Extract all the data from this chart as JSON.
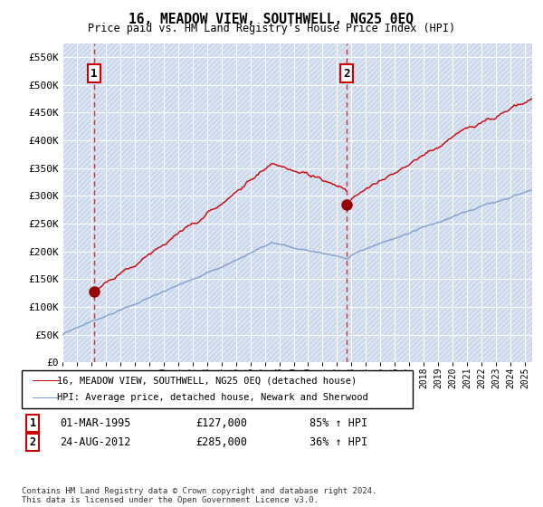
{
  "title": "16, MEADOW VIEW, SOUTHWELL, NG25 0EQ",
  "subtitle": "Price paid vs. HM Land Registry's House Price Index (HPI)",
  "ylabel_ticks": [
    "£0",
    "£50K",
    "£100K",
    "£150K",
    "£200K",
    "£250K",
    "£300K",
    "£350K",
    "£400K",
    "£450K",
    "£500K",
    "£550K"
  ],
  "ytick_values": [
    0,
    50000,
    100000,
    150000,
    200000,
    250000,
    300000,
    350000,
    400000,
    450000,
    500000,
    550000
  ],
  "ylim": [
    0,
    575000
  ],
  "xlim_start": 1993.0,
  "xlim_end": 2025.5,
  "sale1_date": 1995.17,
  "sale1_price": 127000,
  "sale1_label": "1",
  "sale2_date": 2012.65,
  "sale2_price": 285000,
  "sale2_label": "2",
  "legend_line1": "16, MEADOW VIEW, SOUTHWELL, NG25 0EQ (detached house)",
  "legend_line2": "HPI: Average price, detached house, Newark and Sherwood",
  "annotation1_date": "01-MAR-1995",
  "annotation1_price": "£127,000",
  "annotation1_hpi": "85% ↑ HPI",
  "annotation2_date": "24-AUG-2012",
  "annotation2_price": "£285,000",
  "annotation2_hpi": "36% ↑ HPI",
  "footer": "Contains HM Land Registry data © Crown copyright and database right 2024.\nThis data is licensed under the Open Government Licence v3.0.",
  "hpi_color": "#7799cc",
  "price_color": "#cc0000",
  "grid_color": "#c8cfe0",
  "sale_marker_color": "#990000",
  "dashed_line_color": "#cc3333"
}
